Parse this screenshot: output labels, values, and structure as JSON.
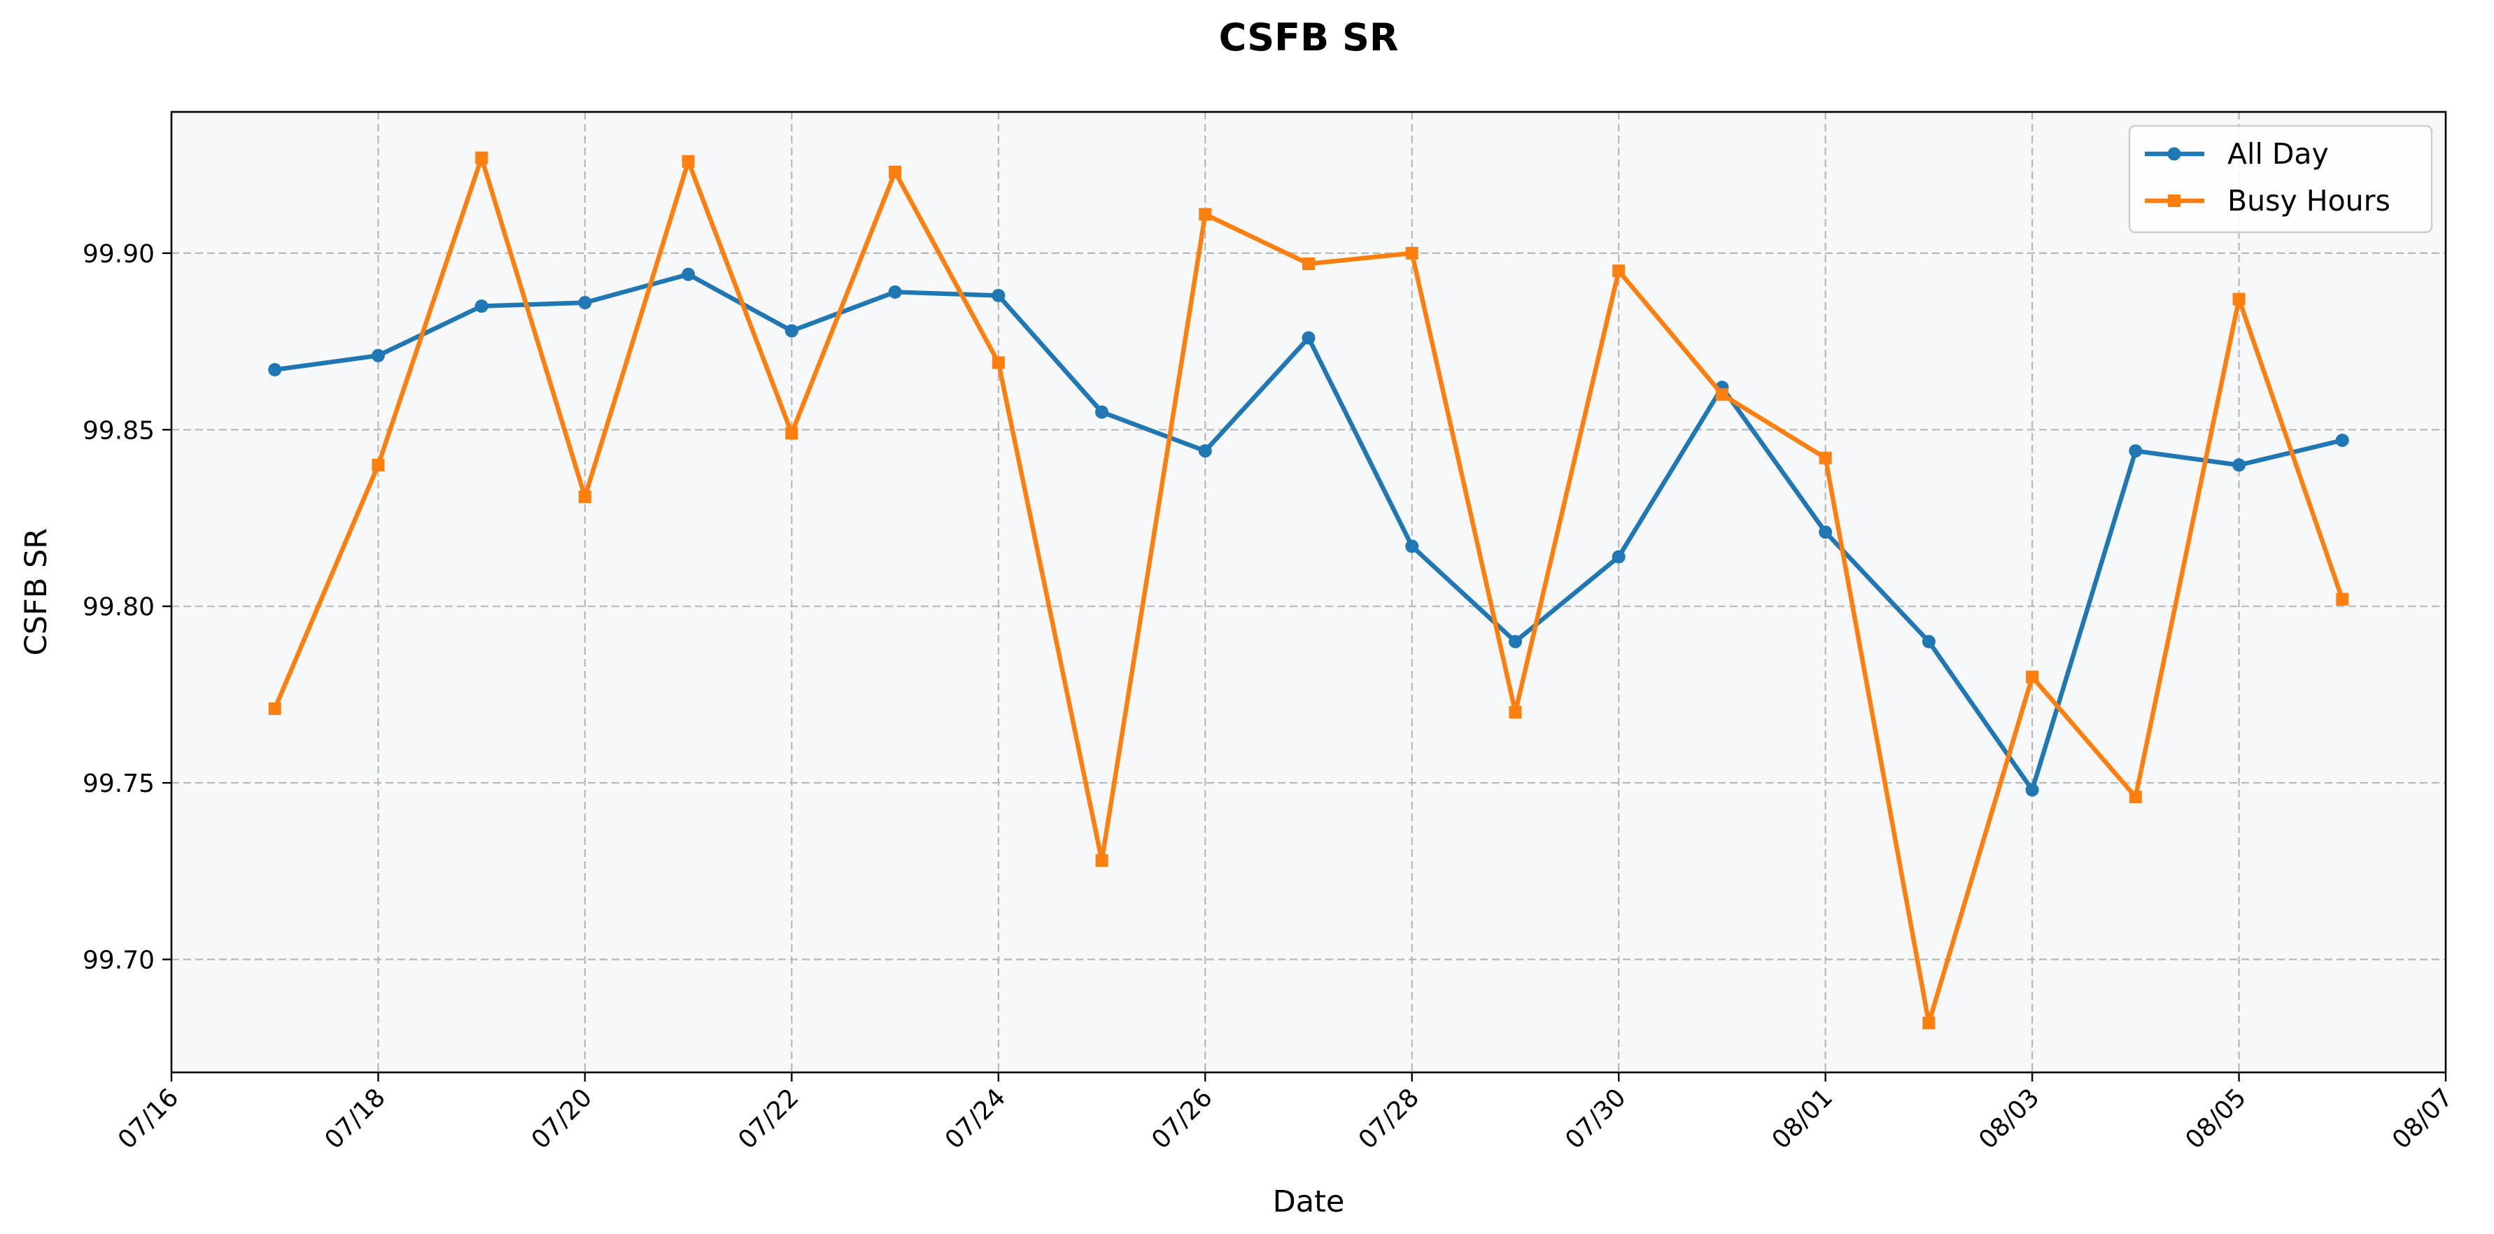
{
  "chart_data": {
    "type": "line",
    "title": "CSFB SR",
    "xlabel": "Date",
    "ylabel": "CSFB SR",
    "x_axis": {
      "type": "date",
      "range": [
        "07/16",
        "08/07"
      ],
      "ticks": [
        "07/16",
        "07/18",
        "07/20",
        "07/22",
        "07/24",
        "07/26",
        "07/28",
        "07/30",
        "08/01",
        "08/03",
        "08/05",
        "08/07"
      ]
    },
    "y_axis": {
      "range": [
        99.668,
        99.94
      ],
      "ticks": [
        99.7,
        99.75,
        99.8,
        99.85,
        99.9
      ],
      "tick_labels": [
        "99.70",
        "99.75",
        "99.80",
        "99.85",
        "99.90"
      ]
    },
    "grid": true,
    "legend": "top-right",
    "x": [
      "07/17",
      "07/18",
      "07/19",
      "07/20",
      "07/21",
      "07/22",
      "07/23",
      "07/24",
      "07/25",
      "07/26",
      "07/27",
      "07/28",
      "07/29",
      "07/30",
      "07/31",
      "08/01",
      "08/02",
      "08/03",
      "08/04",
      "08/05",
      "08/06"
    ],
    "series": [
      {
        "name": "All Day",
        "color": "#1f77b4",
        "marker": "circle",
        "values": [
          99.867,
          99.871,
          99.885,
          99.886,
          99.894,
          99.878,
          99.889,
          99.888,
          99.855,
          99.844,
          99.876,
          99.817,
          99.79,
          99.814,
          99.862,
          99.821,
          99.79,
          99.748,
          99.844,
          99.84,
          99.847
        ]
      },
      {
        "name": "Busy Hours",
        "color": "#ff7f0e",
        "marker": "square",
        "values": [
          99.771,
          99.84,
          99.927,
          99.831,
          99.926,
          99.849,
          99.923,
          99.869,
          99.728,
          99.911,
          99.897,
          99.9,
          99.77,
          99.895,
          99.86,
          99.842,
          99.682,
          99.78,
          99.746,
          99.887,
          99.802
        ]
      }
    ],
    "colors": {
      "plot_background": "#f7f8fa",
      "grid": "#b8b8b8",
      "axes": "#000000"
    }
  }
}
